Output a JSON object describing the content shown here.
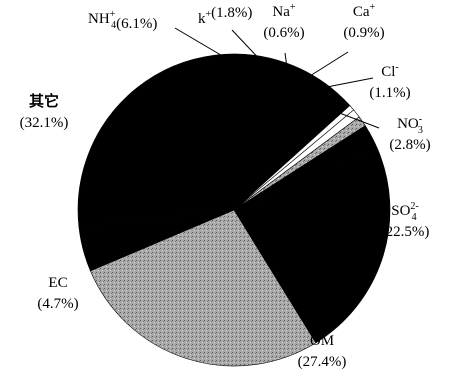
{
  "chart_data": {
    "type": "pie",
    "title": "",
    "colors": {
      "black": "#000000",
      "white": "#ffffff",
      "gray": "#9a9a9a"
    },
    "slices": [
      {
        "key": "nh4",
        "species": "NH",
        "sub": "4",
        "sup": "+",
        "pct_text": "(6.1%)",
        "value": 6.1,
        "fill": "black"
      },
      {
        "key": "k",
        "species": "k",
        "sub": "",
        "sup": "+",
        "pct_text": "(1.8%)",
        "value": 1.8,
        "fill": "black"
      },
      {
        "key": "na",
        "species": "Na",
        "sub": "",
        "sup": "+",
        "pct_text": "(0.6%)",
        "value": 0.6,
        "fill": "white"
      },
      {
        "key": "ca",
        "species": "Ca",
        "sub": "",
        "sup": "+",
        "pct_text": "(0.9%)",
        "value": 0.9,
        "fill": "white"
      },
      {
        "key": "cl",
        "species": "Cl",
        "sub": "",
        "sup": "-",
        "pct_text": "(1.1%)",
        "value": 1.1,
        "fill": "gray"
      },
      {
        "key": "no3",
        "species": "NO",
        "sub": "3",
        "sup": "-",
        "pct_text": "(2.8%)",
        "value": 2.8,
        "fill": "black"
      },
      {
        "key": "so4",
        "species": "SO",
        "sub": "4",
        "sup": "2-",
        "pct_text": "(22.5%)",
        "value": 22.5,
        "fill": "black"
      },
      {
        "key": "om",
        "species": "OM",
        "sub": "",
        "sup": "",
        "pct_text": "(27.4%)",
        "value": 27.4,
        "fill": "gray"
      },
      {
        "key": "ec",
        "species": "EC",
        "sub": "",
        "sup": "",
        "pct_text": "(4.7%)",
        "value": 4.7,
        "fill": "black"
      },
      {
        "key": "other",
        "species": "其它",
        "sub": "",
        "sup": "",
        "pct_text": "(32.1%)",
        "value": 32.1,
        "fill": "black"
      }
    ]
  }
}
